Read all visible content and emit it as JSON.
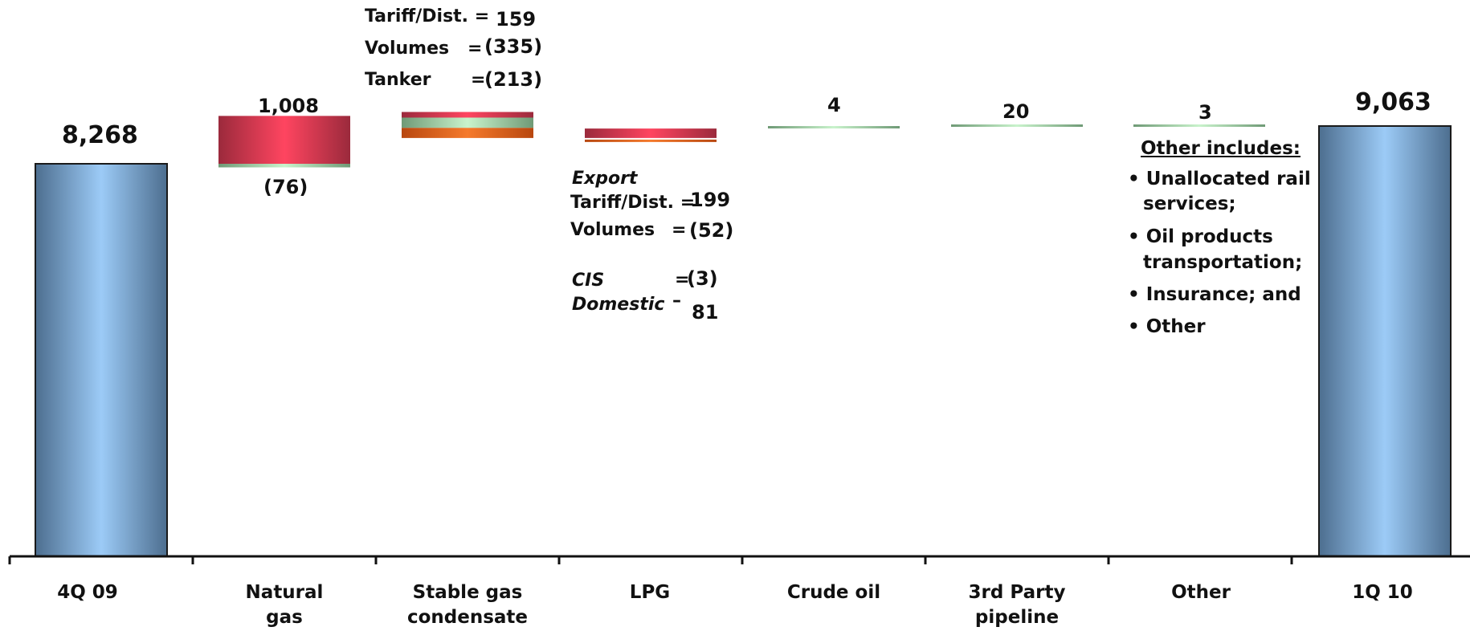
{
  "chart_data": {
    "type": "waterfall",
    "categories": [
      "4Q 09",
      "Natural\ngas",
      "Stable gas\ncondensate",
      "LPG",
      "Crude oil",
      "3rd Party\npipeline",
      "Other",
      "1Q 10"
    ],
    "totals": [
      {
        "category": "4Q 09",
        "value": 8268,
        "label": "8,268"
      },
      {
        "category": "1Q 10",
        "value": 9063,
        "label": "9,063"
      }
    ],
    "steps": [
      {
        "category": "Natural\ngas",
        "increase": 1008,
        "decrease": -76,
        "increase_label": "1,008",
        "decrease_label": "(76)"
      },
      {
        "category": "Stable gas\ncondensate",
        "components": [
          {
            "name": "Tariff/Dist.",
            "value": 159
          },
          {
            "name": "Volumes",
            "value": -335
          },
          {
            "name": "Tanker",
            "value": -213
          }
        ]
      },
      {
        "category": "LPG",
        "components": [
          {
            "name": "Export Tariff/Dist.",
            "value": 199
          },
          {
            "name": "Volumes",
            "value": -52
          },
          {
            "name": "CIS",
            "value": -3
          },
          {
            "name": "Domestic",
            "value": 81
          }
        ]
      },
      {
        "category": "Crude oil",
        "value": 4,
        "label": "4"
      },
      {
        "category": "3rd Party\npipeline",
        "value": 20,
        "label": "20"
      },
      {
        "category": "Other",
        "value": 3,
        "label": "3"
      }
    ],
    "colors": {
      "total": "#8fb9e6",
      "total_edge": "#4d6e8f",
      "increase": "#f0415b",
      "increase_edge": "#9b2a3c",
      "decrease_green": "#b9e3bd",
      "decrease_orange": "#e8661d"
    }
  },
  "annotations": {
    "condensate": {
      "tariff_label": "Tariff/Dist. =",
      "tariff_value": "159",
      "volumes_label": "Volumes",
      "volumes_eq": "=",
      "volumes_value": "(335)",
      "tanker_label": "Tanker",
      "tanker_eq": "=",
      "tanker_value": "(213)"
    },
    "lpg": {
      "export_label": "Export",
      "tariff_label": "Tariff/Dist. =",
      "tariff_value": "199",
      "volumes_label": "Volumes",
      "volumes_eq": "=",
      "volumes_value": "(52)",
      "cis_label": "CIS",
      "cis_eq": "=",
      "cis_value": "(3)",
      "domestic_label": "Domestic",
      "domestic_eq": "–",
      "domestic_value": "81"
    },
    "other_box": {
      "title": "Other includes:",
      "items": [
        "Unallocated rail",
        "services;",
        "Oil products",
        "transportation;",
        "Insurance; and",
        "Other"
      ]
    }
  }
}
